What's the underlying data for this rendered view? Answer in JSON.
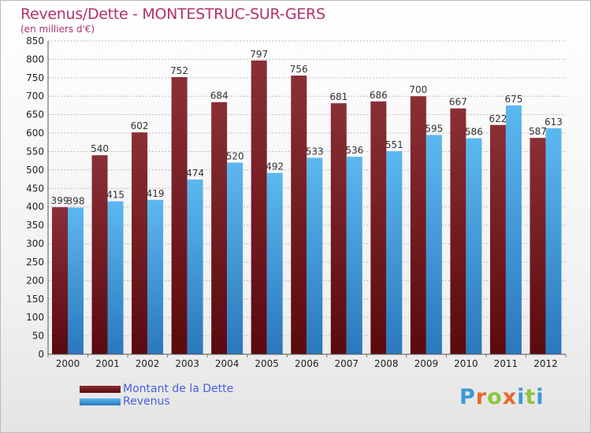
{
  "title": "Revenus/Dette - MONTESTRUC-SUR-GERS",
  "subtitle": "(en milliers d'€)",
  "logo": {
    "text": "Proxiti",
    "letter_colors": [
      "#3a9ad9",
      "#e8682a",
      "#8dc63f",
      "#e8682a",
      "#3a9ad9",
      "#8dc63f",
      "#3a9ad9"
    ]
  },
  "colors": {
    "dette_top": "#8a2f36",
    "dette_bottom": "#5a0a0e",
    "revenus_top": "#5cb8f0",
    "revenus_bottom": "#2a78bd",
    "grid": "#bdbdbd",
    "title": "#b0306b",
    "legend_text": "#4a5fe0"
  },
  "chart_data": {
    "type": "bar",
    "categories": [
      "2000",
      "2001",
      "2002",
      "2003",
      "2004",
      "2005",
      "2006",
      "2007",
      "2008",
      "2009",
      "2010",
      "2011",
      "2012"
    ],
    "series": [
      {
        "name": "Montant de la Dette",
        "values": [
          399,
          540,
          602,
          752,
          684,
          797,
          756,
          681,
          686,
          700,
          667,
          622,
          587
        ]
      },
      {
        "name": "Revenus",
        "values": [
          398,
          415,
          419,
          474,
          520,
          492,
          533,
          536,
          551,
          595,
          586,
          675,
          613
        ]
      }
    ],
    "title": "Revenus/Dette - MONTESTRUC-SUR-GERS",
    "ylabel": "(en milliers d'€)",
    "ylim": [
      0,
      850
    ],
    "ytick_step": 50,
    "grid": true,
    "legend": "bottom-left"
  }
}
